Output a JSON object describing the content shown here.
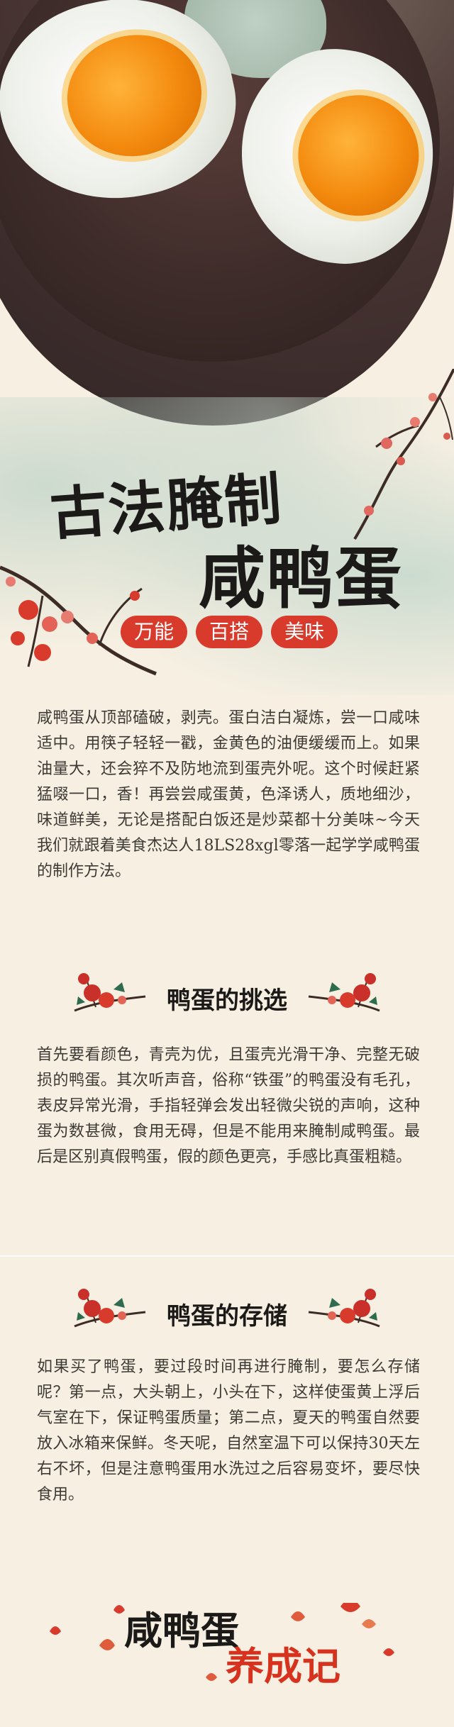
{
  "hero": {
    "image_alt": ""
  },
  "title": {
    "line1": "古法腌制",
    "line2": "咸鸭蛋"
  },
  "tags": [
    "万能",
    "百搭",
    "美味"
  ],
  "intro": {
    "text": "咸鸭蛋从顶部磕破，剥壳。蛋白洁白凝炼，尝一口咸味适中。用筷子轻轻一戳，金黄色的油便缓缓而上。如果油量大，还会猝不及防地流到蛋壳外呢。这个时候赶紧猛啜一口，香！再尝尝咸蛋黄，色泽诱人，质地细沙，味道鲜美，无论是搭配白饭还是炒菜都十分美味~今天我们就跟着美食杰达人18LS28xgl零落一起学学咸鸭蛋的制作方法。"
  },
  "section1": {
    "heading": "鸭蛋的挑选",
    "text": "首先要看颜色，青壳为优，且蛋壳光滑干净、完整无破损的鸭蛋。其次听声音，俗称“铁蛋”的鸭蛋没有毛孔，表皮异常光滑，手指轻弹会发出轻微尖锐的声响，这种蛋为数甚微，食用无碍，但是不能用来腌制咸鸭蛋。最后是区别真假鸭蛋，假的颜色更亮，手感比真蛋粗糙。"
  },
  "section2": {
    "heading": "鸭蛋的存储",
    "text": "如果买了鸭蛋，要过段时间再进行腌制，要怎么存储呢？第一点，大头朝上，小头在下，这样使蛋黄上浮后气室在下，保证鸭蛋质量；第二点，夏天的鸭蛋自然要放入冰箱来保鲜。冬天呢，自然室温下可以保持30天左右不坏，但是注意鸭蛋用水洗过之后容易变坏，要尽快食用。"
  },
  "footer": {
    "title_black": "咸鸭蛋",
    "title_red": "养成记"
  },
  "colors": {
    "accent_red": "#d83a2c",
    "background": "#f7f0e2",
    "ink": "#1c1a19"
  }
}
